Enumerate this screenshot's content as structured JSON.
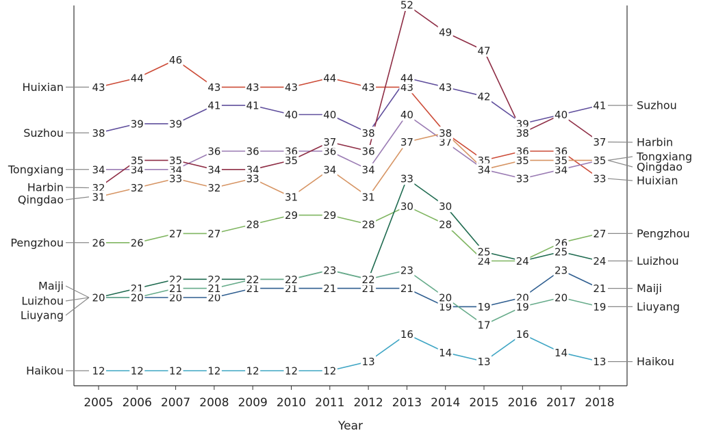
{
  "chart_data": {
    "type": "line",
    "xlabel": "Year",
    "x": [
      2005,
      2006,
      2007,
      2008,
      2009,
      2010,
      2011,
      2012,
      2013,
      2014,
      2015,
      2016,
      2017,
      2018
    ],
    "x_tick_labels": [
      "2005",
      "2006",
      "2007",
      "2008",
      "2009",
      "2010",
      "2011",
      "2012",
      "2013",
      "2014",
      "2015",
      "2016",
      "2017",
      "2018"
    ],
    "ylim": [
      8,
      53
    ],
    "grid": false,
    "series": [
      {
        "name": "Huixian",
        "color": "#cc4b37",
        "values": [
          43,
          44,
          46,
          43,
          43,
          43,
          44,
          43,
          43,
          38,
          35,
          36,
          36,
          33
        ]
      },
      {
        "name": "Suzhou",
        "color": "#5f4e9c",
        "values": [
          38,
          39,
          39,
          41,
          41,
          40,
          40,
          38,
          44,
          43,
          42,
          39,
          40,
          41
        ]
      },
      {
        "name": "Tongxiang",
        "color": "#9a7bb3",
        "values": [
          34,
          34,
          34,
          36,
          36,
          36,
          36,
          34,
          40,
          37,
          34,
          33,
          34,
          35
        ]
      },
      {
        "name": "Harbin",
        "color": "#8e2d45",
        "values": [
          32,
          35,
          35,
          34,
          34,
          35,
          37,
          36,
          52,
          49,
          47,
          38,
          40,
          37
        ]
      },
      {
        "name": "Qingdao",
        "color": "#d69463",
        "values": [
          31,
          32,
          33,
          32,
          33,
          31,
          34,
          31,
          37,
          38,
          34,
          35,
          35,
          35
        ]
      },
      {
        "name": "Pengzhou",
        "color": "#7fb560",
        "values": [
          26,
          26,
          27,
          27,
          28,
          29,
          29,
          28,
          30,
          28,
          24,
          24,
          26,
          27
        ]
      },
      {
        "name": "Luizhou",
        "color": "#1e6a4f",
        "values": [
          20,
          21,
          22,
          22,
          22,
          22,
          23,
          22,
          33,
          30,
          25,
          24,
          25,
          24
        ]
      },
      {
        "name": "Maiji",
        "color": "#2e5d8f",
        "values": [
          20,
          20,
          20,
          20,
          21,
          21,
          21,
          21,
          21,
          19,
          19,
          20,
          23,
          21
        ]
      },
      {
        "name": "Liuyang",
        "color": "#66ab8a",
        "values": [
          20,
          20,
          21,
          21,
          22,
          22,
          23,
          22,
          23,
          20,
          17,
          19,
          20,
          19
        ]
      },
      {
        "name": "Haikou",
        "color": "#3ea5c4",
        "values": [
          12,
          12,
          12,
          12,
          12,
          12,
          12,
          13,
          16,
          14,
          13,
          16,
          14,
          13
        ]
      }
    ],
    "left_labels": [
      "Huixian",
      "Suzhou",
      "Tongxiang",
      "Harbin",
      "Qingdao",
      "Pengzhou",
      "Maiji",
      "Luizhou",
      "Liuyang",
      "Haikou"
    ],
    "right_labels": [
      "Suzhou",
      "Harbin",
      "Tongxiang",
      "Qingdao",
      "Huixian",
      "Pengzhou",
      "Luizhou",
      "Maiji",
      "Liuyang",
      "Haikou"
    ]
  }
}
